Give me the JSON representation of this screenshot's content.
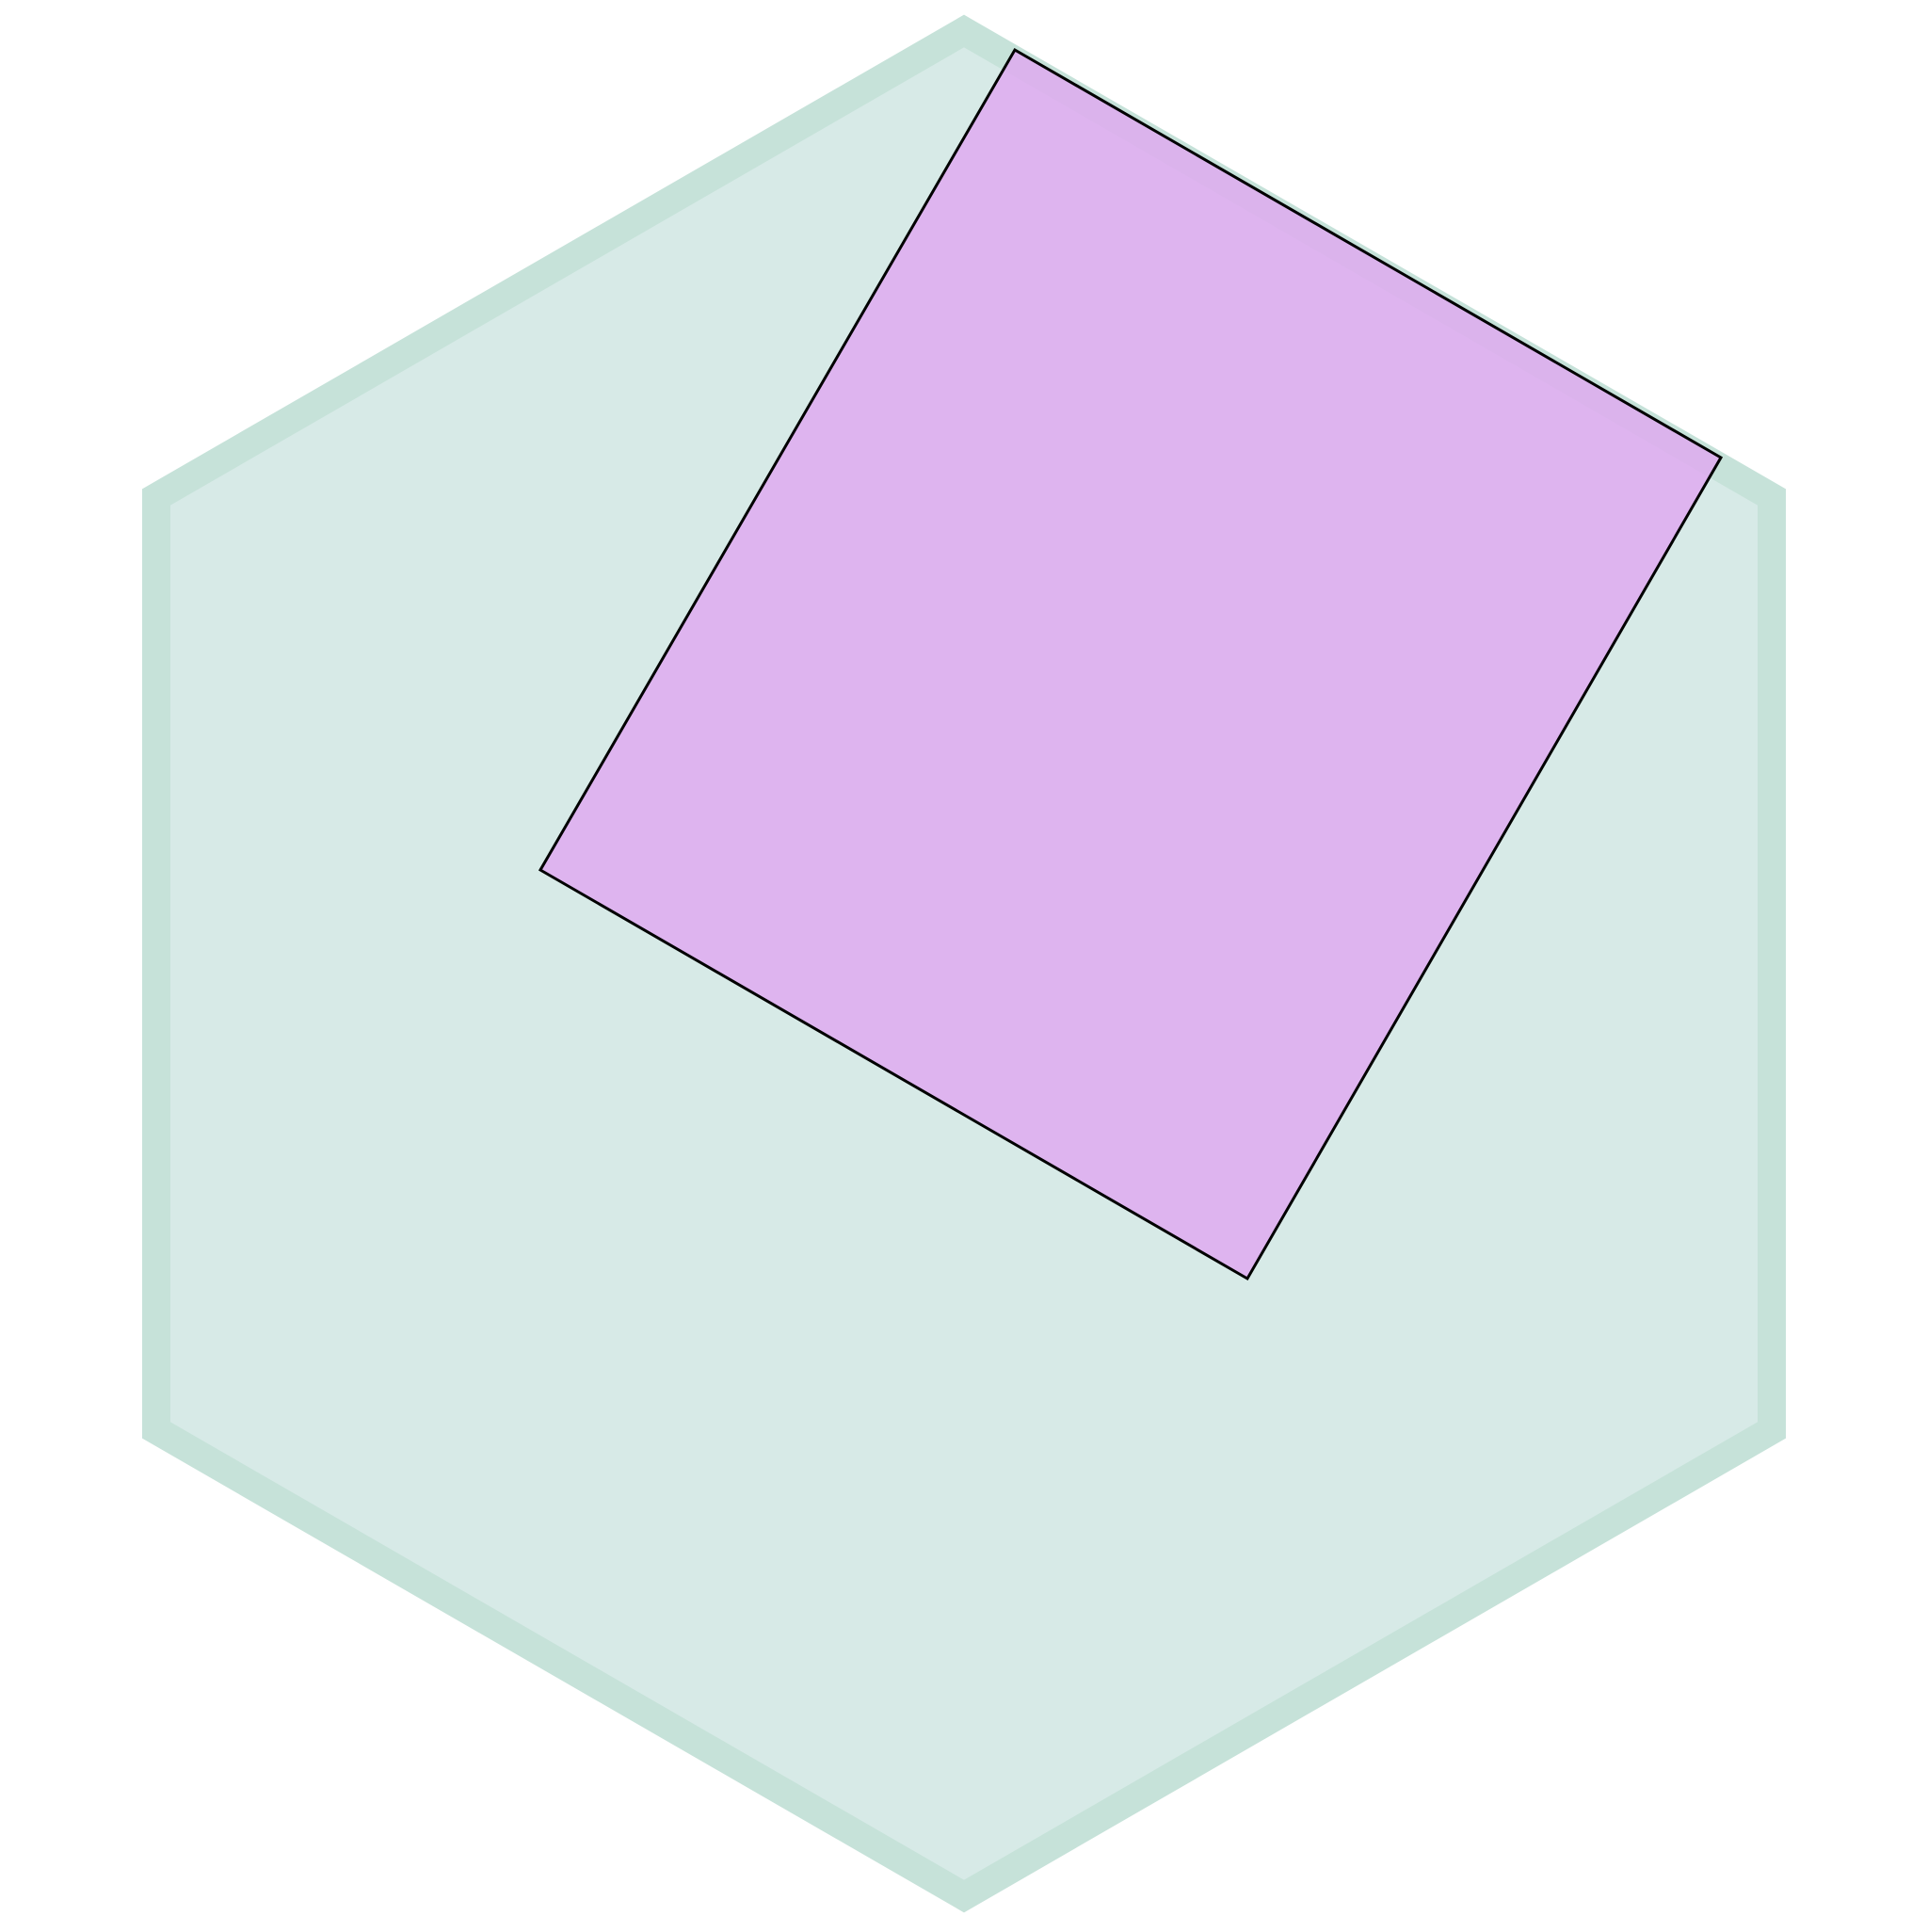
{
  "diagram": {
    "shapes": [
      {
        "kind": "hexagon",
        "fill": "#d7eae7",
        "stroke": "#c6e2d9"
      },
      {
        "kind": "quadrilateral",
        "fill": "#dfa8f0",
        "fill_opacity": 0.82,
        "stroke": "#000000"
      }
    ]
  }
}
